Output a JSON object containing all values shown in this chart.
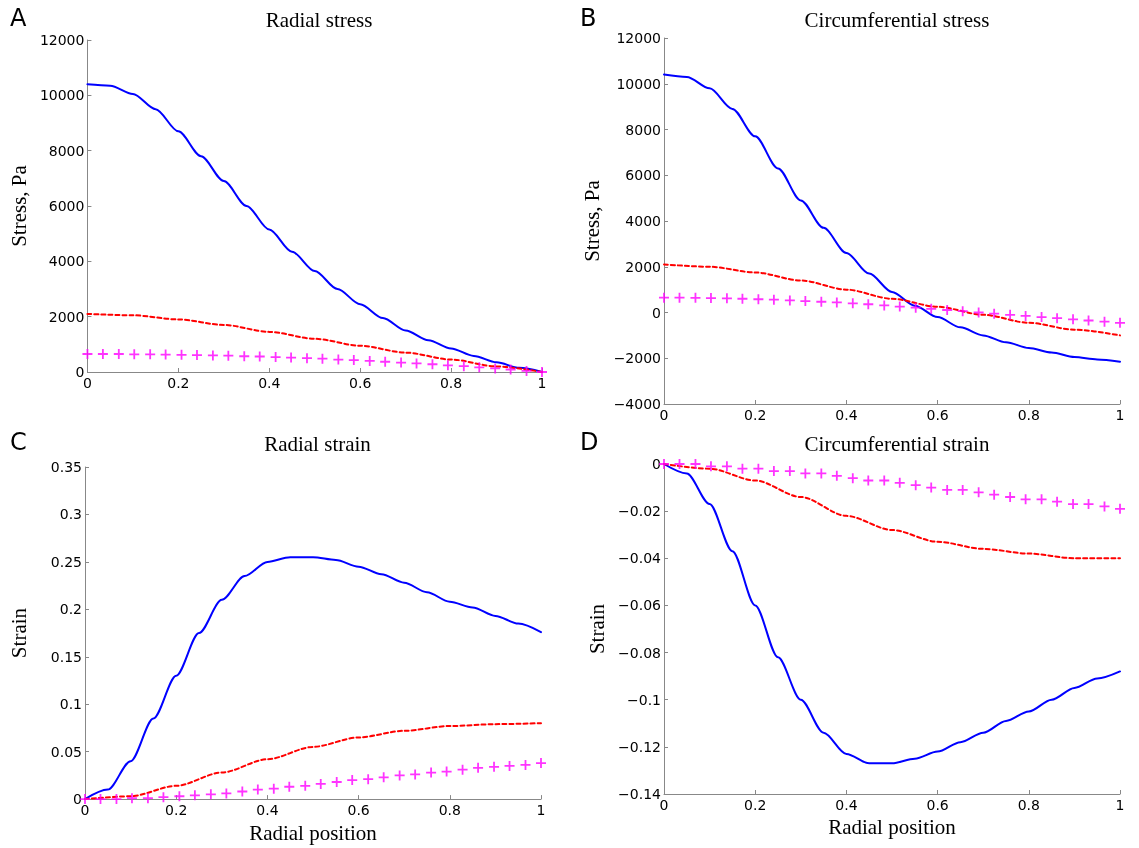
{
  "chart_data": [
    {
      "type": "line",
      "title": "Radial stress",
      "ylabel": "Stress, Pa",
      "annotations": [
        "A"
      ],
      "xlim": [
        0,
        1
      ],
      "xticks": [
        0,
        0.2,
        0.4,
        0.6,
        0.8,
        1
      ],
      "ylim": [
        0,
        12000
      ],
      "yticks": [
        0,
        2000,
        4000,
        6000,
        8000,
        10000,
        12000
      ],
      "grid": false,
      "series": [
        {
          "color": "#0000ff",
          "line_style": "solid",
          "x": [
            0,
            0.05,
            0.1,
            0.15,
            0.2,
            0.25,
            0.3,
            0.35,
            0.4,
            0.45,
            0.5,
            0.55,
            0.6,
            0.65,
            0.7,
            0.75,
            0.8,
            0.85,
            0.9,
            0.95,
            1
          ],
          "values": [
            10400,
            10350,
            10050,
            9500,
            8700,
            7800,
            6900,
            6000,
            5150,
            4350,
            3650,
            3000,
            2450,
            1950,
            1500,
            1150,
            850,
            580,
            350,
            150,
            0
          ]
        },
        {
          "color": "#ff0000",
          "line_style": "dashed",
          "x": [
            0,
            0.1,
            0.2,
            0.3,
            0.4,
            0.5,
            0.6,
            0.7,
            0.8,
            0.9,
            1
          ],
          "values": [
            2100,
            2050,
            1900,
            1700,
            1450,
            1200,
            950,
            700,
            450,
            200,
            0
          ]
        },
        {
          "type": "scatter",
          "marker": "cross",
          "color": "#ff00ff",
          "x": [
            0,
            0.034,
            0.069,
            0.103,
            0.138,
            0.172,
            0.207,
            0.241,
            0.276,
            0.31,
            0.345,
            0.379,
            0.414,
            0.448,
            0.483,
            0.517,
            0.552,
            0.586,
            0.621,
            0.655,
            0.69,
            0.724,
            0.759,
            0.793,
            0.828,
            0.862,
            0.897,
            0.931,
            0.966,
            1
          ],
          "values": [
            650,
            650,
            650,
            640,
            640,
            630,
            620,
            610,
            600,
            590,
            570,
            560,
            540,
            520,
            500,
            480,
            450,
            430,
            400,
            370,
            340,
            310,
            280,
            240,
            210,
            170,
            130,
            90,
            40,
            0
          ]
        }
      ]
    },
    {
      "type": "line",
      "title": "Circumferential stress",
      "ylabel": "Stress, Pa",
      "annotations": [
        "B"
      ],
      "xlim": [
        0,
        1
      ],
      "xticks": [
        0,
        0.2,
        0.4,
        0.6,
        0.8,
        1
      ],
      "ylim": [
        -4000,
        12000
      ],
      "yticks": [
        -4000,
        -2000,
        0,
        2000,
        4000,
        6000,
        8000,
        10000,
        12000
      ],
      "grid": false,
      "series": [
        {
          "color": "#0000ff",
          "line_style": "solid",
          "x": [
            0,
            0.05,
            0.1,
            0.15,
            0.2,
            0.25,
            0.3,
            0.35,
            0.4,
            0.45,
            0.5,
            0.55,
            0.6,
            0.65,
            0.7,
            0.75,
            0.8,
            0.85,
            0.9,
            0.95,
            1
          ],
          "values": [
            10400,
            10300,
            9800,
            8900,
            7700,
            6300,
            4900,
            3700,
            2600,
            1700,
            900,
            300,
            -200,
            -650,
            -1000,
            -1300,
            -1550,
            -1750,
            -1950,
            -2050,
            -2150
          ]
        },
        {
          "color": "#ff0000",
          "line_style": "dashed",
          "x": [
            0,
            0.1,
            0.2,
            0.3,
            0.4,
            0.5,
            0.6,
            0.7,
            0.8,
            0.9,
            1
          ],
          "values": [
            2100,
            2000,
            1750,
            1400,
            1000,
            600,
            250,
            -100,
            -450,
            -750,
            -1000
          ]
        },
        {
          "type": "scatter",
          "marker": "cross",
          "color": "#ff00ff",
          "x": [
            0,
            0.034,
            0.069,
            0.103,
            0.138,
            0.172,
            0.207,
            0.241,
            0.276,
            0.31,
            0.345,
            0.379,
            0.414,
            0.448,
            0.483,
            0.517,
            0.552,
            0.586,
            0.621,
            0.655,
            0.69,
            0.724,
            0.759,
            0.793,
            0.828,
            0.862,
            0.897,
            0.931,
            0.966,
            1
          ],
          "values": [
            650,
            650,
            640,
            630,
            620,
            600,
            580,
            560,
            530,
            500,
            470,
            440,
            400,
            360,
            310,
            260,
            210,
            160,
            110,
            60,
            0,
            -50,
            -100,
            -150,
            -200,
            -250,
            -300,
            -350,
            -400,
            -450
          ]
        }
      ]
    },
    {
      "type": "line",
      "title": "Radial strain",
      "xlabel": "Radial position",
      "ylabel": "Strain",
      "annotations": [
        "C"
      ],
      "xlim": [
        0,
        1
      ],
      "xticks": [
        0,
        0.2,
        0.4,
        0.6,
        0.8,
        1
      ],
      "ylim": [
        0,
        0.35
      ],
      "yticks": [
        0,
        0.05,
        0.1,
        0.15,
        0.2,
        0.25,
        0.3,
        0.35
      ],
      "grid": false,
      "series": [
        {
          "color": "#0000ff",
          "line_style": "solid",
          "x": [
            0,
            0.05,
            0.1,
            0.15,
            0.2,
            0.25,
            0.3,
            0.35,
            0.4,
            0.45,
            0.5,
            0.55,
            0.6,
            0.65,
            0.7,
            0.75,
            0.8,
            0.85,
            0.9,
            0.95,
            1
          ],
          "values": [
            0,
            0.01,
            0.04,
            0.085,
            0.13,
            0.175,
            0.21,
            0.235,
            0.25,
            0.255,
            0.255,
            0.252,
            0.245,
            0.237,
            0.228,
            0.218,
            0.208,
            0.202,
            0.193,
            0.185,
            0.176
          ]
        },
        {
          "color": "#ff0000",
          "line_style": "dashed",
          "x": [
            0,
            0.1,
            0.2,
            0.3,
            0.4,
            0.5,
            0.6,
            0.7,
            0.8,
            0.9,
            1
          ],
          "values": [
            0,
            0.003,
            0.014,
            0.028,
            0.042,
            0.055,
            0.065,
            0.072,
            0.077,
            0.079,
            0.08
          ]
        },
        {
          "type": "scatter",
          "marker": "cross",
          "color": "#ff00ff",
          "x": [
            0,
            0.034,
            0.069,
            0.103,
            0.138,
            0.172,
            0.207,
            0.241,
            0.276,
            0.31,
            0.345,
            0.379,
            0.414,
            0.448,
            0.483,
            0.517,
            0.552,
            0.586,
            0.621,
            0.655,
            0.69,
            0.724,
            0.759,
            0.793,
            0.828,
            0.862,
            0.897,
            0.931,
            0.966,
            1
          ],
          "values": [
            0,
            0,
            0,
            0.001,
            0.001,
            0.002,
            0.003,
            0.004,
            0.005,
            0.006,
            0.008,
            0.01,
            0.011,
            0.013,
            0.014,
            0.016,
            0.018,
            0.02,
            0.021,
            0.023,
            0.025,
            0.026,
            0.028,
            0.029,
            0.031,
            0.033,
            0.034,
            0.035,
            0.036,
            0.038
          ]
        }
      ]
    },
    {
      "type": "line",
      "title": "Circumferential strain",
      "xlabel": "Radial position",
      "ylabel": "Strain",
      "annotations": [
        "D"
      ],
      "xlim": [
        0,
        1
      ],
      "xticks": [
        0,
        0.2,
        0.4,
        0.6,
        0.8,
        1
      ],
      "ylim": [
        -0.14,
        0
      ],
      "yticks": [
        -0.14,
        -0.12,
        -0.1,
        -0.08,
        -0.06,
        -0.04,
        -0.02,
        0
      ],
      "grid": false,
      "series": [
        {
          "color": "#0000ff",
          "line_style": "solid",
          "x": [
            0,
            0.05,
            0.1,
            0.15,
            0.2,
            0.25,
            0.3,
            0.35,
            0.4,
            0.45,
            0.5,
            0.55,
            0.6,
            0.65,
            0.7,
            0.75,
            0.8,
            0.85,
            0.9,
            0.95,
            1
          ],
          "values": [
            0,
            -0.004,
            -0.017,
            -0.037,
            -0.06,
            -0.082,
            -0.1,
            -0.114,
            -0.123,
            -0.127,
            -0.127,
            -0.125,
            -0.122,
            -0.118,
            -0.114,
            -0.109,
            -0.105,
            -0.1,
            -0.095,
            -0.091,
            -0.088
          ]
        },
        {
          "color": "#ff0000",
          "line_style": "dashed",
          "x": [
            0,
            0.1,
            0.2,
            0.3,
            0.4,
            0.5,
            0.6,
            0.7,
            0.8,
            0.9,
            1
          ],
          "values": [
            0,
            -0.002,
            -0.007,
            -0.014,
            -0.022,
            -0.028,
            -0.033,
            -0.036,
            -0.038,
            -0.04,
            -0.04
          ]
        },
        {
          "type": "scatter",
          "marker": "cross",
          "color": "#ff00ff",
          "x": [
            0,
            0.034,
            0.069,
            0.103,
            0.138,
            0.172,
            0.207,
            0.241,
            0.276,
            0.31,
            0.345,
            0.379,
            0.414,
            0.448,
            0.483,
            0.517,
            0.552,
            0.586,
            0.621,
            0.655,
            0.69,
            0.724,
            0.759,
            0.793,
            0.828,
            0.862,
            0.897,
            0.931,
            0.966,
            1
          ],
          "values": [
            0,
            0,
            0,
            -0.001,
            -0.001,
            -0.002,
            -0.002,
            -0.003,
            -0.003,
            -0.004,
            -0.004,
            -0.005,
            -0.006,
            -0.007,
            -0.007,
            -0.008,
            -0.009,
            -0.01,
            -0.011,
            -0.011,
            -0.012,
            -0.013,
            -0.014,
            -0.015,
            -0.015,
            -0.016,
            -0.017,
            -0.017,
            -0.018,
            -0.019
          ]
        }
      ]
    }
  ]
}
